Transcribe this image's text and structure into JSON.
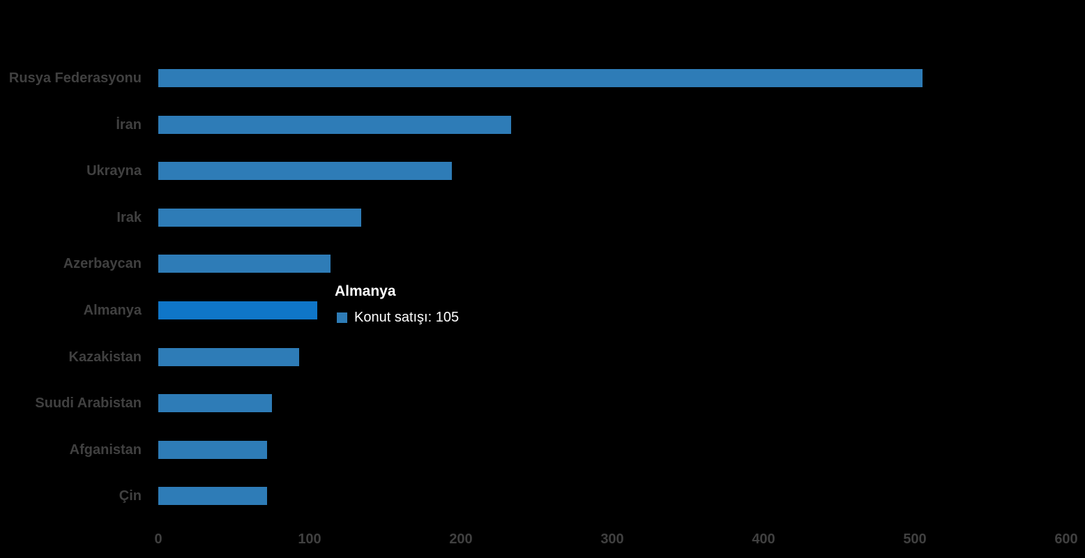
{
  "chart_data": {
    "type": "bar",
    "orientation": "horizontal",
    "title": "",
    "xlabel": "",
    "ylabel": "",
    "series_name": "Konut satışı",
    "categories": [
      "Rusya Federasyonu",
      "İran",
      "Ukrayna",
      "Irak",
      "Azerbaycan",
      "Almanya",
      "Kazakistan",
      "Suudi Arabistan",
      "Afganistan",
      "Çin"
    ],
    "values": [
      505,
      233,
      194,
      134,
      114,
      105,
      93,
      75,
      72,
      72
    ],
    "xlim": [
      0,
      600
    ],
    "xticks": [
      0,
      100,
      200,
      300,
      400,
      500,
      600
    ],
    "grid": false,
    "legend_position": "none",
    "bar_color": "#2E7CB7",
    "highlight_color": "#0F76C8",
    "highlighted_category": "Almanya",
    "axis_text_color": "#404040",
    "background_color": "#000000"
  },
  "tooltip": {
    "title": "Almanya",
    "series_label": "Konut satışı",
    "value": 105,
    "line": "Konut satışı: 105",
    "swatch_color": "#2E7CB7",
    "text_color": "#FFFFFF"
  }
}
